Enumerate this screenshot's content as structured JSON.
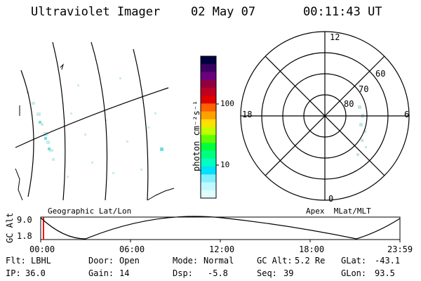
{
  "header": {
    "instrument": "Ultraviolet Imager",
    "date": "02 May 07",
    "time": "00:11:43 UT"
  },
  "panels": {
    "geo_label": "Geographic Lat/Lon",
    "apex_label": "Apex  MLat/MLT"
  },
  "colorbar": {
    "unit_label": "photon cm⁻²s⁻¹",
    "ticks": [
      "100",
      "10"
    ],
    "colors": [
      "#000040",
      "#3a0060",
      "#6a0080",
      "#900040",
      "#c00020",
      "#e00000",
      "#ff6000",
      "#ffa000",
      "#ffe000",
      "#c0ff00",
      "#60ff00",
      "#00ff40",
      "#00ff80",
      "#00ffc0",
      "#00e0ff",
      "#80f0ff",
      "#c0f8ff",
      "#e0fcff"
    ]
  },
  "polar": {
    "mlt_labels": [
      "12",
      "18",
      "6",
      "0"
    ],
    "lat_labels": [
      "60",
      "70",
      "80"
    ]
  },
  "altitude_plot": {
    "ylabel": "GC Alt",
    "yticks": [
      "9.0",
      "1.8"
    ],
    "xticks": [
      "00:00",
      "06:00",
      "12:00",
      "18:00",
      "23:59"
    ],
    "current_marker_color": "#ff0000"
  },
  "info": {
    "row1": {
      "flt_label": "Flt:",
      "flt_value": "LBHL",
      "door_label": "Door:",
      "door_value": "Open",
      "mode_label": "Mode:",
      "mode_value": "Normal",
      "gcalt_label": "GC Alt:",
      "gcalt_value": "5.2 Re",
      "glat_label": "GLat:",
      "glat_value": "-43.1"
    },
    "row2": {
      "ip_label": "IP:",
      "ip_value": "36.0",
      "gain_label": "Gain:",
      "gain_value": "14",
      "dsp_label": "Dsp:",
      "dsp_value": "-5.8",
      "seq_label": "Seq:",
      "seq_value": "39",
      "glon_label": "GLon:",
      "glon_value": "93.5"
    }
  }
}
